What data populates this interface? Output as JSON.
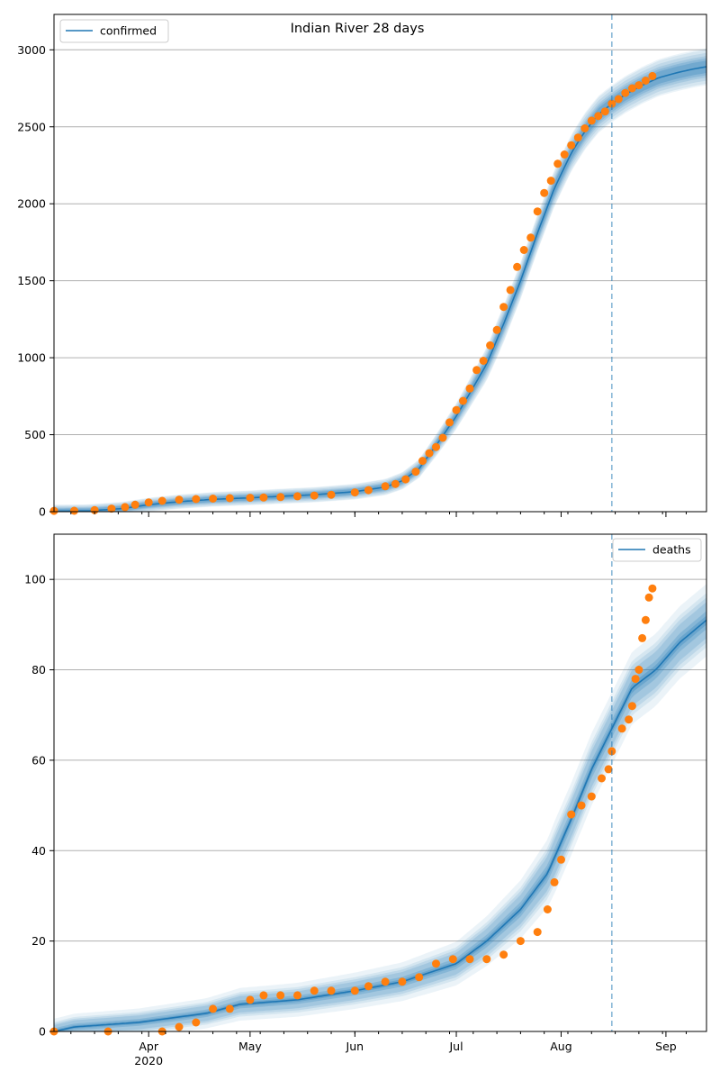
{
  "figure": {
    "title": "Indian River 28 days"
  },
  "colors": {
    "model": "#1f77b4",
    "observed": "#ff7f0e",
    "band": "#1f77b4",
    "grid": "#b0b0b0"
  },
  "chart_data": [
    {
      "type": "line",
      "title": "Indian River 28 days",
      "legend": {
        "label": "confirmed",
        "placement": "top-left"
      },
      "x_ticks": [
        {
          "date": "2020-04-01",
          "label": "Apr",
          "sublabel": "2020"
        },
        {
          "date": "2020-05-01",
          "label": "May",
          "sublabel": ""
        },
        {
          "date": "2020-06-01",
          "label": "Jun",
          "sublabel": ""
        },
        {
          "date": "2020-07-01",
          "label": "Jul",
          "sublabel": ""
        },
        {
          "date": "2020-08-01",
          "label": "Aug",
          "sublabel": ""
        },
        {
          "date": "2020-09-01",
          "label": "Sep",
          "sublabel": ""
        }
      ],
      "xlim": [
        "2020-03-04",
        "2020-09-13"
      ],
      "ylim": [
        0,
        3230
      ],
      "y_ticks": [
        0,
        500,
        1000,
        1500,
        2000,
        2500,
        3000
      ],
      "grid": "y",
      "forecast_start": "2020-08-16",
      "model": {
        "x": [
          "2020-03-04",
          "2020-03-14",
          "2020-03-24",
          "2020-04-01",
          "2020-04-10",
          "2020-04-20",
          "2020-05-01",
          "2020-05-10",
          "2020-05-20",
          "2020-06-01",
          "2020-06-10",
          "2020-06-15",
          "2020-06-20",
          "2020-06-25",
          "2020-07-01",
          "2020-07-05",
          "2020-07-10",
          "2020-07-15",
          "2020-07-20",
          "2020-07-25",
          "2020-07-30",
          "2020-08-04",
          "2020-08-08",
          "2020-08-12",
          "2020-08-16",
          "2020-08-20",
          "2020-08-25",
          "2020-08-30",
          "2020-09-04",
          "2020-09-09",
          "2020-09-13"
        ],
        "values": [
          3,
          5,
          20,
          45,
          65,
          80,
          90,
          100,
          110,
          130,
          160,
          200,
          280,
          430,
          620,
          770,
          960,
          1220,
          1500,
          1810,
          2100,
          2330,
          2470,
          2580,
          2650,
          2710,
          2770,
          2820,
          2850,
          2875,
          2890
        ],
        "band_offsets": [
          40,
          55,
          70,
          90,
          110,
          120
        ]
      },
      "observed": {
        "x": [
          "2020-03-04",
          "2020-03-10",
          "2020-03-16",
          "2020-03-21",
          "2020-03-25",
          "2020-03-28",
          "2020-04-01",
          "2020-04-05",
          "2020-04-10",
          "2020-04-15",
          "2020-04-20",
          "2020-04-25",
          "2020-05-01",
          "2020-05-05",
          "2020-05-10",
          "2020-05-15",
          "2020-05-20",
          "2020-05-25",
          "2020-06-01",
          "2020-06-05",
          "2020-06-10",
          "2020-06-13",
          "2020-06-16",
          "2020-06-19",
          "2020-06-21",
          "2020-06-23",
          "2020-06-25",
          "2020-06-27",
          "2020-06-29",
          "2020-07-01",
          "2020-07-03",
          "2020-07-05",
          "2020-07-07",
          "2020-07-09",
          "2020-07-11",
          "2020-07-13",
          "2020-07-15",
          "2020-07-17",
          "2020-07-19",
          "2020-07-21",
          "2020-07-23",
          "2020-07-25",
          "2020-07-27",
          "2020-07-29",
          "2020-07-31",
          "2020-08-02",
          "2020-08-04",
          "2020-08-06",
          "2020-08-08",
          "2020-08-10",
          "2020-08-12",
          "2020-08-14",
          "2020-08-16",
          "2020-08-18",
          "2020-08-20",
          "2020-08-22",
          "2020-08-24",
          "2020-08-26",
          "2020-08-28"
        ],
        "values": [
          5,
          6,
          10,
          20,
          30,
          45,
          60,
          70,
          78,
          82,
          85,
          88,
          90,
          92,
          95,
          100,
          105,
          110,
          125,
          140,
          165,
          180,
          210,
          260,
          330,
          380,
          420,
          480,
          580,
          660,
          720,
          800,
          920,
          980,
          1080,
          1180,
          1330,
          1440,
          1590,
          1700,
          1780,
          1950,
          2070,
          2150,
          2260,
          2320,
          2380,
          2430,
          2490,
          2540,
          2570,
          2600,
          2650,
          2680,
          2720,
          2750,
          2770,
          2800,
          2830
        ]
      }
    },
    {
      "type": "line",
      "title": "",
      "legend": {
        "label": "deaths",
        "placement": "top-right"
      },
      "x_ticks": [
        {
          "date": "2020-04-01",
          "label": "Apr",
          "sublabel": "2020"
        },
        {
          "date": "2020-05-01",
          "label": "May",
          "sublabel": ""
        },
        {
          "date": "2020-06-01",
          "label": "Jun",
          "sublabel": ""
        },
        {
          "date": "2020-07-01",
          "label": "Jul",
          "sublabel": ""
        },
        {
          "date": "2020-08-01",
          "label": "Aug",
          "sublabel": ""
        },
        {
          "date": "2020-09-01",
          "label": "Sep",
          "sublabel": ""
        }
      ],
      "xlim": [
        "2020-03-04",
        "2020-09-13"
      ],
      "ylim": [
        0,
        110
      ],
      "y_ticks": [
        0,
        20,
        40,
        60,
        80,
        100
      ],
      "grid": "y",
      "forecast_start": "2020-08-16",
      "model": {
        "x": [
          "2020-03-04",
          "2020-03-10",
          "2020-03-29",
          "2020-04-08",
          "2020-04-18",
          "2020-04-28",
          "2020-05-15",
          "2020-06-01",
          "2020-06-15",
          "2020-07-01",
          "2020-07-10",
          "2020-07-20",
          "2020-07-28",
          "2020-08-04",
          "2020-08-10",
          "2020-08-16",
          "2020-08-22",
          "2020-08-29",
          "2020-09-05",
          "2020-09-13"
        ],
        "values": [
          0,
          1,
          2,
          3,
          4,
          6,
          7,
          9,
          11,
          15,
          20,
          27,
          35,
          47,
          58,
          67,
          76,
          80,
          86,
          91
        ],
        "band_offsets": [
          1,
          2,
          4,
          5,
          6,
          8
        ]
      },
      "observed": {
        "x": [
          "2020-03-04",
          "2020-03-20",
          "2020-04-05",
          "2020-04-10",
          "2020-04-15",
          "2020-04-20",
          "2020-04-25",
          "2020-05-01",
          "2020-05-05",
          "2020-05-10",
          "2020-05-15",
          "2020-05-20",
          "2020-05-25",
          "2020-06-01",
          "2020-06-05",
          "2020-06-10",
          "2020-06-15",
          "2020-06-20",
          "2020-06-25",
          "2020-06-30",
          "2020-07-05",
          "2020-07-10",
          "2020-07-15",
          "2020-07-20",
          "2020-07-25",
          "2020-07-28",
          "2020-07-30",
          "2020-08-01",
          "2020-08-04",
          "2020-08-07",
          "2020-08-10",
          "2020-08-13",
          "2020-08-15",
          "2020-08-16",
          "2020-08-19",
          "2020-08-21",
          "2020-08-22",
          "2020-08-23",
          "2020-08-24",
          "2020-08-25",
          "2020-08-26",
          "2020-08-27",
          "2020-08-28"
        ],
        "values": [
          0,
          0,
          0,
          1,
          2,
          5,
          5,
          7,
          8,
          8,
          8,
          9,
          9,
          9,
          10,
          11,
          11,
          12,
          15,
          16,
          16,
          16,
          17,
          20,
          22,
          27,
          33,
          38,
          48,
          50,
          52,
          56,
          58,
          62,
          67,
          69,
          72,
          78,
          80,
          87,
          91,
          96,
          98
        ]
      }
    }
  ]
}
